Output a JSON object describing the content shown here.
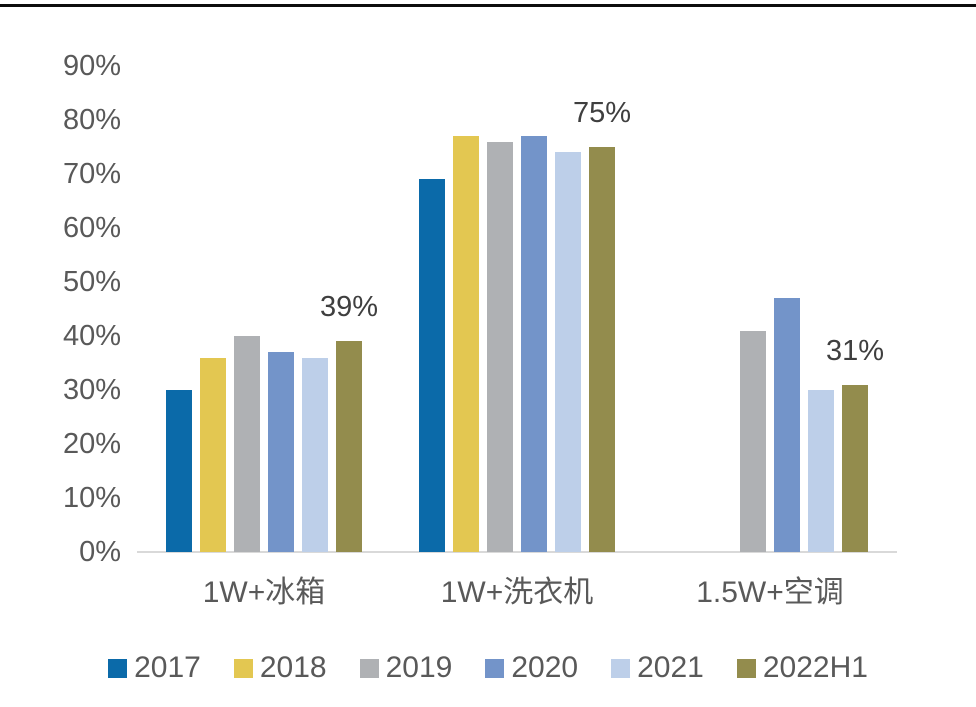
{
  "chart_data": {
    "type": "bar",
    "title": "",
    "categories": [
      "1W+冰箱",
      "1W+洗衣机",
      "1.5W+空调"
    ],
    "series": [
      {
        "name": "2017",
        "color": "#0B6AA9",
        "values": [
          30,
          69,
          null
        ]
      },
      {
        "name": "2018",
        "color": "#E3C751",
        "values": [
          36,
          77,
          null
        ]
      },
      {
        "name": "2019",
        "color": "#AFB1B4",
        "values": [
          40,
          76,
          41
        ]
      },
      {
        "name": "2020",
        "color": "#7394C9",
        "values": [
          37,
          77,
          47
        ]
      },
      {
        "name": "2021",
        "color": "#BDCFE9",
        "values": [
          36,
          74,
          30
        ]
      },
      {
        "name": "2022H1",
        "color": "#938C4D",
        "values": [
          39,
          75,
          31
        ]
      }
    ],
    "y_axis": {
      "min": 0,
      "max": 90,
      "step": 10,
      "format": "percent",
      "tick_labels": [
        "0%",
        "10%",
        "20%",
        "30%",
        "40%",
        "50%",
        "60%",
        "70%",
        "80%",
        "90%"
      ]
    },
    "x_axis": {
      "tick_labels": [
        "1W+冰箱",
        "1W+洗衣机",
        "1.5W+空调"
      ]
    },
    "data_labels": [
      {
        "category_index": 0,
        "series_name": "2022H1",
        "text": "39%"
      },
      {
        "category_index": 1,
        "series_name": "2022H1",
        "text": "75%"
      },
      {
        "category_index": 2,
        "series_name": "2022H1",
        "text": "31%"
      }
    ],
    "legend": {
      "position": "bottom",
      "entries": [
        "2017",
        "2018",
        "2019",
        "2020",
        "2021",
        "2022H1"
      ]
    },
    "grid": false,
    "colors": {
      "axis_line": "#d9d9d9",
      "tick_text": "#595959",
      "data_label_text": "#3f3f3f",
      "top_rule": "#0d0d0d"
    }
  }
}
